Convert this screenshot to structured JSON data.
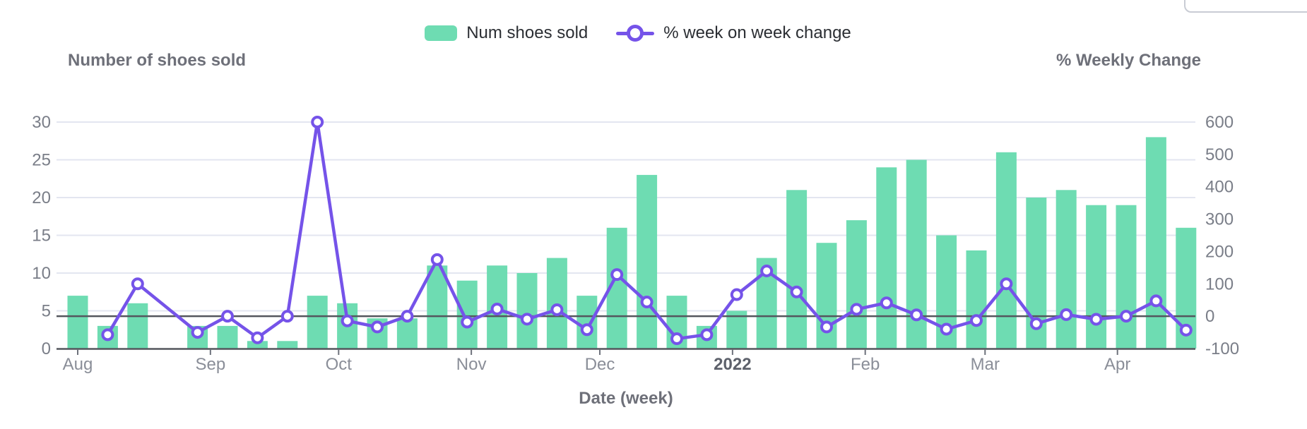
{
  "legend": {
    "bar_label": "Num shoes sold",
    "line_label": "% week on week change"
  },
  "axes": {
    "left_title": "Number of shoes sold",
    "right_title": "% Weekly Change",
    "x_title": "Date (week)"
  },
  "colors": {
    "bar": "#6EDCB2",
    "line": "#7553E9",
    "grid": "#E3E6F0",
    "zero_line": "#54565D",
    "axis_line": "#54565D",
    "tick_mark": "#6E727C",
    "tick_text": "#7A7E88",
    "month_text": "#8A8E98",
    "year_text": "#5D616B",
    "title_text": "#6E7079",
    "legend_text": "#2B2E33"
  },
  "chart_data": {
    "type": "combo",
    "title": "",
    "x_axis": {
      "label": "Date (week)",
      "unit": "week",
      "num_weeks": 38,
      "month_ticks": [
        {
          "label": "Aug",
          "week": 1.0,
          "bold": false
        },
        {
          "label": "Sep",
          "week": 5.43,
          "bold": false
        },
        {
          "label": "Oct",
          "week": 9.71,
          "bold": false
        },
        {
          "label": "Nov",
          "week": 14.14,
          "bold": false
        },
        {
          "label": "Dec",
          "week": 18.43,
          "bold": false
        },
        {
          "label": "2022",
          "week": 22.86,
          "bold": true
        },
        {
          "label": "Feb",
          "week": 27.29,
          "bold": false
        },
        {
          "label": "Mar",
          "week": 31.29,
          "bold": false
        },
        {
          "label": "Apr",
          "week": 35.71,
          "bold": false
        }
      ]
    },
    "y_left": {
      "title": "Number of shoes sold",
      "ticks": [
        0,
        5,
        10,
        15,
        20,
        25,
        30
      ],
      "range": [
        0,
        30
      ]
    },
    "y_right": {
      "title": "% Weekly Change",
      "ticks": [
        -100,
        0,
        100,
        200,
        300,
        400,
        500,
        600
      ],
      "range": [
        -100,
        600
      ]
    },
    "grid": true,
    "legend_position": "top-center",
    "series": [
      {
        "name": "Num shoes sold",
        "type": "bar",
        "axis": "left",
        "color": "#6EDCB2",
        "values": [
          7,
          3,
          6,
          null,
          3,
          3,
          1,
          1,
          7,
          6,
          4,
          4,
          11,
          9,
          11,
          10,
          12,
          7,
          16,
          23,
          7,
          3,
          5,
          12,
          21,
          14,
          17,
          24,
          25,
          15,
          13,
          26,
          20,
          21,
          19,
          19,
          28,
          16
        ]
      },
      {
        "name": "% week on week change",
        "type": "line",
        "axis": "right",
        "color": "#7553E9",
        "marker": "hollow-circle",
        "values": [
          null,
          -57.1,
          100,
          null,
          -50,
          0,
          -66.7,
          0,
          600,
          -14.3,
          -33.3,
          0,
          175,
          -18.2,
          22.2,
          -9.1,
          20,
          -41.7,
          128.6,
          43.8,
          -69.6,
          -57.1,
          66.7,
          140,
          75,
          -33.3,
          21.4,
          41.2,
          4.2,
          -40,
          -13.3,
          100,
          -23.1,
          5,
          -9.5,
          0,
          47.4,
          -42.9
        ]
      }
    ]
  }
}
